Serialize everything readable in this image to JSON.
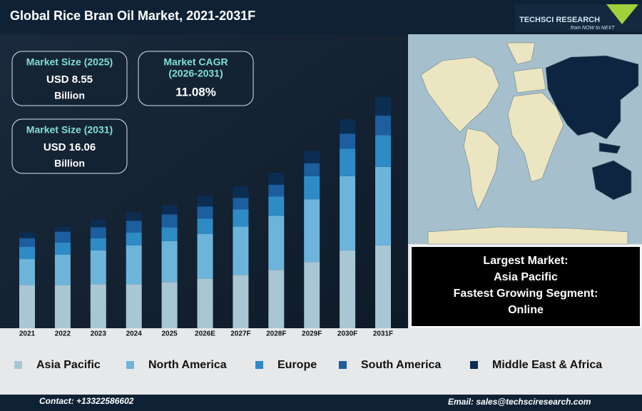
{
  "header": {
    "title": "Global Rice Bran Oil Market, 2021-2031F",
    "logo": "TECHSCI RESEARCH",
    "logo_tagline": "from NOW to NEXT"
  },
  "kpis": [
    {
      "label": "Market Size (2025)",
      "value": "USD 8.55",
      "unit": "Billion"
    },
    {
      "label": "Market CAGR",
      "period": "(2026-2031)",
      "value": "11.08%"
    },
    {
      "label": "Market Size (2031)",
      "value": "USD 16.06",
      "unit": "Billion"
    }
  ],
  "highlights": [
    "Largest Market:",
    "Asia Pacific",
    "Fastest Growing Segment:",
    "Online"
  ],
  "chart_data": {
    "type": "bar",
    "stacked": true,
    "categories": [
      "2021",
      "2022",
      "2023",
      "2024",
      "2025",
      "2026E",
      "2027F",
      "2028F",
      "2029F",
      "2030F",
      "2031F"
    ],
    "series": [
      {
        "name": "Asia Pacific",
        "color": "#a9c6d4",
        "values": [
          3.0,
          3.0,
          3.05,
          3.05,
          3.2,
          3.45,
          3.7,
          4.05,
          4.6,
          5.4,
          5.75
        ]
      },
      {
        "name": "North America",
        "color": "#6db4da",
        "values": [
          1.8,
          2.1,
          2.35,
          2.7,
          2.85,
          3.1,
          3.35,
          3.75,
          4.35,
          5.15,
          5.45
        ]
      },
      {
        "name": "Europe",
        "color": "#2e8bc6",
        "values": [
          0.85,
          0.85,
          0.85,
          0.9,
          0.95,
          1.05,
          1.2,
          1.35,
          1.6,
          1.9,
          2.2
        ]
      },
      {
        "name": "South America",
        "color": "#1c5e9e",
        "values": [
          0.6,
          0.75,
          0.75,
          0.8,
          0.9,
          0.85,
          0.8,
          0.8,
          0.9,
          1.05,
          1.35
        ]
      },
      {
        "name": "Middle East & Africa",
        "color": "#0c2d52",
        "values": [
          0.4,
          0.35,
          0.55,
          0.6,
          0.65,
          0.75,
          0.8,
          0.85,
          0.85,
          1.0,
          1.3
        ]
      }
    ]
  },
  "footer": {
    "contact": "Contact: +13322586602",
    "email": "Email: sales@techsciresearch.com"
  }
}
